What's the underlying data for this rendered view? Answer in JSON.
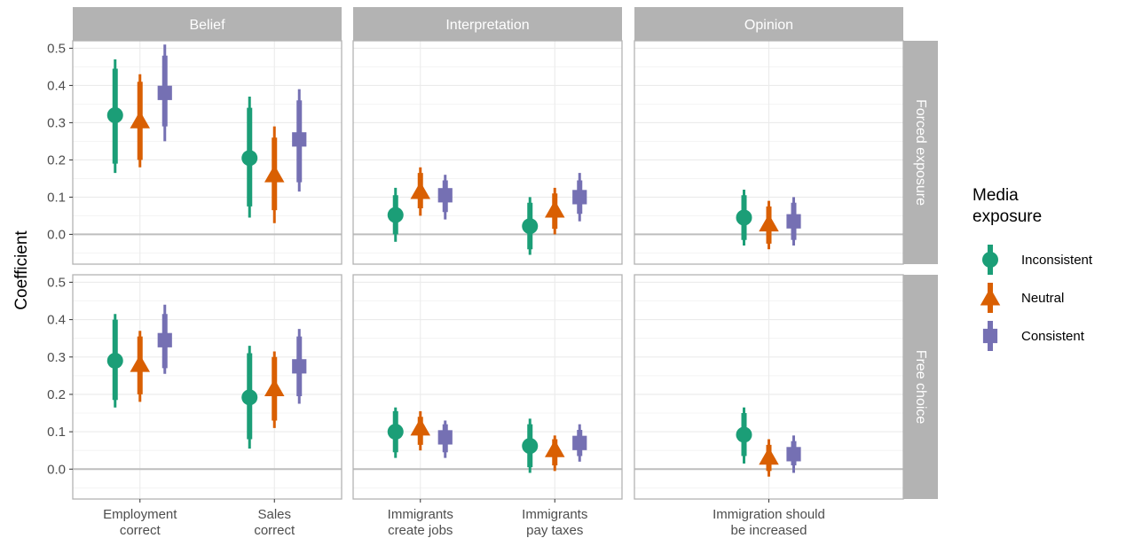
{
  "chart_data": {
    "type": "scatter",
    "subtype": "faceted coefficient plot with point estimates and thick/thin interval bars",
    "ylabel": "Coefficient",
    "ylim": [
      -0.08,
      0.52
    ],
    "yticks": [
      "0.0",
      "0.1",
      "0.2",
      "0.3",
      "0.4",
      "0.5"
    ],
    "grid": true,
    "reference_line_y": 0,
    "col_facets": [
      "Belief",
      "Interpretation",
      "Opinion"
    ],
    "row_facets": [
      "Forced exposure",
      "Free choice"
    ],
    "col_categories": [
      [
        [
          "Employment",
          "correct"
        ],
        [
          "Sales",
          "correct"
        ]
      ],
      [
        [
          "Immigrants",
          "create jobs"
        ],
        [
          "Immigrants",
          "pay taxes"
        ]
      ],
      [
        [
          "Immigration should",
          "be increased"
        ]
      ]
    ],
    "legend": {
      "title": [
        "Media",
        "exposure"
      ],
      "position": "right",
      "entries": [
        {
          "name": "Inconsistent",
          "color": "#1b9e77",
          "shape": "circle"
        },
        {
          "name": "Neutral",
          "color": "#d95f02",
          "shape": "triangle"
        },
        {
          "name": "Consistent",
          "color": "#7570b3",
          "shape": "square"
        }
      ]
    },
    "series_order": [
      "Inconsistent",
      "Neutral",
      "Consistent"
    ],
    "panels": [
      {
        "row": 0,
        "col": 0,
        "points": [
          [
            [
              0.32,
              0.19,
              0.445,
              0.165,
              0.47
            ],
            [
              0.305,
              0.2,
              0.41,
              0.18,
              0.43
            ],
            [
              0.38,
              0.29,
              0.48,
              0.25,
              0.51
            ]
          ],
          [
            [
              0.205,
              0.075,
              0.34,
              0.045,
              0.37
            ],
            [
              0.16,
              0.065,
              0.26,
              0.03,
              0.29
            ],
            [
              0.255,
              0.14,
              0.36,
              0.115,
              0.39
            ]
          ]
        ]
      },
      {
        "row": 0,
        "col": 1,
        "points": [
          [
            [
              0.052,
              0.0,
              0.105,
              -0.02,
              0.125
            ],
            [
              0.115,
              0.07,
              0.165,
              0.05,
              0.18
            ],
            [
              0.105,
              0.06,
              0.145,
              0.04,
              0.16
            ]
          ],
          [
            [
              0.022,
              -0.04,
              0.085,
              -0.055,
              0.1
            ],
            [
              0.065,
              0.015,
              0.11,
              0.0,
              0.125
            ],
            [
              0.1,
              0.055,
              0.145,
              0.035,
              0.165
            ]
          ]
        ]
      },
      {
        "row": 0,
        "col": 2,
        "points": [
          [
            [
              0.045,
              -0.015,
              0.105,
              -0.03,
              0.12
            ],
            [
              0.028,
              -0.025,
              0.075,
              -0.04,
              0.09
            ],
            [
              0.035,
              -0.015,
              0.085,
              -0.03,
              0.1
            ]
          ]
        ]
      },
      {
        "row": 1,
        "col": 0,
        "points": [
          [
            [
              0.29,
              0.185,
              0.4,
              0.165,
              0.415
            ],
            [
              0.28,
              0.2,
              0.355,
              0.18,
              0.37
            ],
            [
              0.345,
              0.27,
              0.415,
              0.255,
              0.44
            ]
          ],
          [
            [
              0.192,
              0.08,
              0.31,
              0.055,
              0.33
            ],
            [
              0.215,
              0.13,
              0.3,
              0.11,
              0.315
            ],
            [
              0.275,
              0.195,
              0.355,
              0.175,
              0.375
            ]
          ]
        ]
      },
      {
        "row": 1,
        "col": 1,
        "points": [
          [
            [
              0.1,
              0.045,
              0.155,
              0.03,
              0.165
            ],
            [
              0.11,
              0.065,
              0.14,
              0.05,
              0.155
            ],
            [
              0.085,
              0.045,
              0.12,
              0.03,
              0.13
            ]
          ],
          [
            [
              0.062,
              0.005,
              0.12,
              -0.01,
              0.135
            ],
            [
              0.052,
              0.01,
              0.08,
              -0.005,
              0.09
            ],
            [
              0.07,
              0.035,
              0.105,
              0.02,
              0.12
            ]
          ]
        ]
      },
      {
        "row": 1,
        "col": 2,
        "points": [
          [
            [
              0.092,
              0.035,
              0.15,
              0.015,
              0.165
            ],
            [
              0.032,
              -0.005,
              0.065,
              -0.02,
              0.08
            ],
            [
              0.04,
              0.01,
              0.075,
              -0.01,
              0.09
            ]
          ]
        ]
      }
    ]
  }
}
